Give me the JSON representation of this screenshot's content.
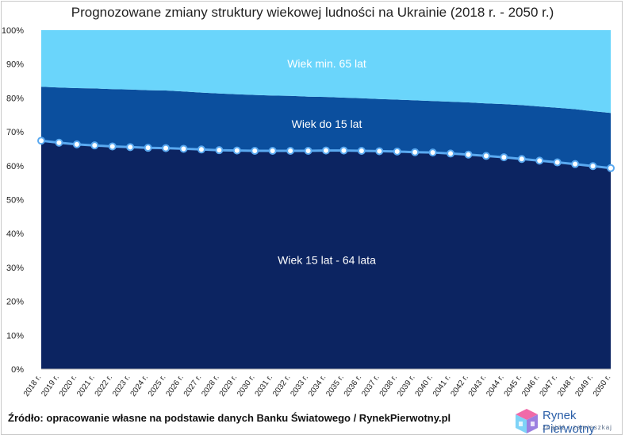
{
  "title": "Prognozowane zmiany struktury wiekowej ludności na Ukrainie (2018 r. - 2050 r.)",
  "source": "Źródło: opracowanie własne na podstawie danych Banku Światowego / RynekPierwotny.pl",
  "logo": {
    "name": "Rynek Pierwotny",
    "tagline": "znajdź i zamieszkaj"
  },
  "colors": {
    "working_age": "#0c2461",
    "under_15": "#0b4f9e",
    "over_65": "#6ad5fb",
    "line": "#5aa9f0",
    "marker_fill": "#ffffff"
  },
  "chart_data": {
    "type": "area",
    "stacked": true,
    "title": "Prognozowane zmiany struktury wiekowej ludności na Ukrainie (2018 r. - 2050 r.)",
    "categories": [
      "2018 r.",
      "2019 r.",
      "2020 r.",
      "2021 r.",
      "2022 r.",
      "2023 r.",
      "2024 r.",
      "2025 r.",
      "2026 r.",
      "2027 r.",
      "2028 r.",
      "2029 r.",
      "2030 r.",
      "2031 r.",
      "2032 r.",
      "2033 r.",
      "2034 r.",
      "2035 r.",
      "2036 r.",
      "2037 r.",
      "2038 r.",
      "2039 r.",
      "2040 r.",
      "2041 r.",
      "2042 r.",
      "2043 r.",
      "2044 r.",
      "2045 r.",
      "2046 r.",
      "2047 r.",
      "2048 r.",
      "2049 r.",
      "2050 r."
    ],
    "series": [
      {
        "name": "Wiek 15 lat - 64 lata",
        "values": [
          67.4,
          66.8,
          66.3,
          66.0,
          65.7,
          65.5,
          65.3,
          65.2,
          65.0,
          64.8,
          64.6,
          64.5,
          64.4,
          64.4,
          64.4,
          64.4,
          64.5,
          64.5,
          64.4,
          64.3,
          64.2,
          64.0,
          63.9,
          63.6,
          63.3,
          62.9,
          62.5,
          62.0,
          61.5,
          61.0,
          60.5,
          59.9,
          59.3
        ]
      },
      {
        "name": "Wiek do 15 lat",
        "values": [
          15.9,
          16.3,
          16.6,
          16.8,
          16.9,
          17.0,
          17.0,
          17.0,
          16.9,
          16.8,
          16.7,
          16.6,
          16.5,
          16.3,
          16.2,
          16.0,
          15.8,
          15.6,
          15.5,
          15.4,
          15.3,
          15.3,
          15.2,
          15.3,
          15.4,
          15.5,
          15.7,
          15.9,
          16.0,
          16.1,
          16.2,
          16.2,
          16.3
        ]
      },
      {
        "name": "Wiek min. 65 lat",
        "values": [
          16.7,
          16.9,
          17.1,
          17.2,
          17.4,
          17.5,
          17.7,
          17.8,
          18.1,
          18.4,
          18.7,
          18.9,
          19.1,
          19.3,
          19.4,
          19.6,
          19.7,
          19.9,
          20.1,
          20.3,
          20.5,
          20.7,
          20.9,
          21.1,
          21.3,
          21.6,
          21.8,
          22.1,
          22.5,
          22.9,
          23.3,
          23.9,
          24.4
        ]
      }
    ],
    "y_ticks": [
      "0%",
      "10%",
      "20%",
      "30%",
      "40%",
      "50%",
      "60%",
      "70%",
      "80%",
      "90%",
      "100%"
    ],
    "ylim": [
      0,
      100
    ],
    "line_series": "Wiek 15 lat - 64 lata",
    "legend": "none (labels inside areas)"
  }
}
